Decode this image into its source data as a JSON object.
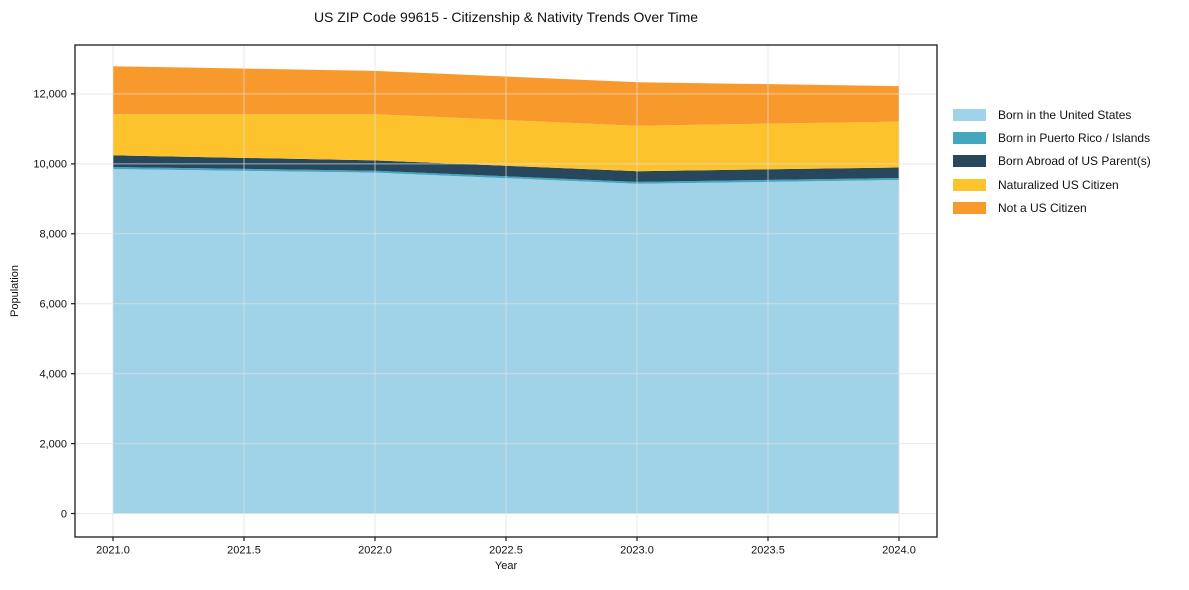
{
  "chart_data": {
    "type": "area",
    "stacked": true,
    "title": "US ZIP Code 99615 - Citizenship & Nativity Trends Over Time",
    "xlabel": "Year",
    "ylabel": "Population",
    "x": [
      2021,
      2022,
      2023,
      2024
    ],
    "series": [
      {
        "name": "Born in the United States",
        "color": "#a0d3e8",
        "values": [
          9850,
          9750,
          9430,
          9540
        ]
      },
      {
        "name": "Born in Puerto Rico / Islands",
        "color": "#45a6c0",
        "values": [
          60,
          55,
          55,
          55
        ]
      },
      {
        "name": "Born Abroad of US Parent(s)",
        "color": "#27485c",
        "values": [
          335,
          295,
          305,
          300
        ]
      },
      {
        "name": "Naturalized US Citizen",
        "color": "#fcc32d",
        "values": [
          1175,
          1320,
          1300,
          1315
        ]
      },
      {
        "name": "Not a US Citizen",
        "color": "#f89a2b",
        "values": [
          1370,
          1240,
          1245,
          1015
        ]
      }
    ],
    "xticks": {
      "values": [
        2021.0,
        2021.5,
        2022.0,
        2022.5,
        2023.0,
        2023.5,
        2024.0
      ],
      "labels": [
        "2021.0",
        "2021.5",
        "2022.0",
        "2022.5",
        "2023.0",
        "2023.5",
        "2024.0"
      ]
    },
    "yticks": {
      "values": [
        0,
        2000,
        4000,
        6000,
        8000,
        10000,
        12000
      ],
      "labels": [
        "0",
        "2,000",
        "4,000",
        "6,000",
        "8,000",
        "10,000",
        "12,000"
      ]
    },
    "xlim": [
      2020.855,
      2024.145
    ],
    "ylim": [
      -672,
      13400
    ],
    "grid": true,
    "grid_color": "#e0e0e0",
    "spine_color": "#1a1a1a",
    "legend_position": "right"
  }
}
